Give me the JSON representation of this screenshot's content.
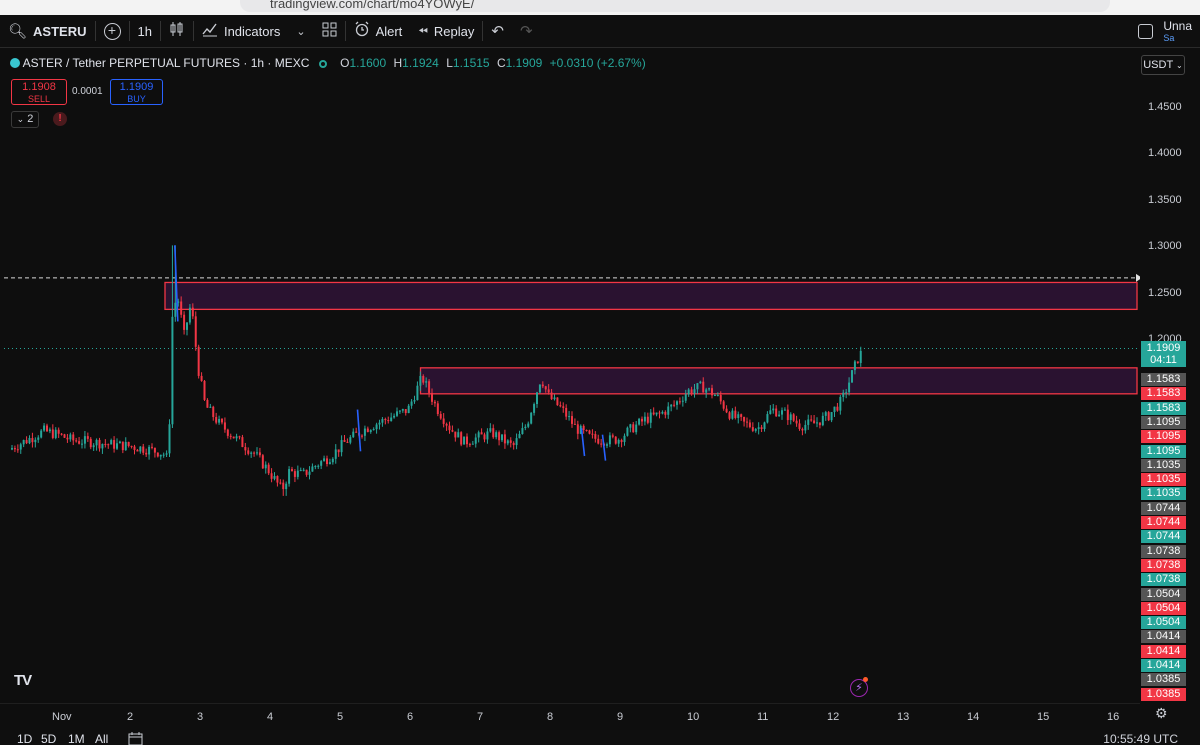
{
  "browser": {
    "url": "tradingview.com/chart/mo4YOWyE/"
  },
  "toolbar": {
    "symbol": "ASTERU",
    "interval": "1h",
    "indicators_label": "Indicators",
    "alert_label": "Alert",
    "replay_label": "Replay",
    "layout_name": "Unna",
    "layout_sub": "Sa"
  },
  "legend": {
    "title": "ASTER / Tether PERPETUAL FUTURES · 1h · MEXC",
    "o_label": "O",
    "o": "1.1600",
    "h_label": "H",
    "h": "1.1924",
    "l_label": "L",
    "l": "1.1515",
    "c_label": "C",
    "c": "1.1909",
    "change": "+0.0310 (+2.67%)"
  },
  "trade": {
    "sell_price": "1.1908",
    "sell_label": "SELL",
    "spread": "0.0001",
    "buy_price": "1.1909",
    "buy_label": "BUY"
  },
  "indicator_count": "2",
  "alert_badge": "!",
  "currency": "USDT",
  "price_ticks": [
    "1.4500",
    "1.4000",
    "1.3500",
    "1.3000",
    "1.2500",
    "1.2000"
  ],
  "last_price": {
    "price": "1.1909",
    "countdown": "04:11",
    "color": "#26a69a"
  },
  "price_tags": [
    {
      "value": "1.1583",
      "color": "#555555"
    },
    {
      "value": "1.1583",
      "color": "#f23645"
    },
    {
      "value": "1.1583",
      "color": "#26a69a"
    },
    {
      "value": "1.1095",
      "color": "#555555"
    },
    {
      "value": "1.1095",
      "color": "#f23645"
    },
    {
      "value": "1.1095",
      "color": "#26a69a"
    },
    {
      "value": "1.1035",
      "color": "#555555"
    },
    {
      "value": "1.1035",
      "color": "#f23645"
    },
    {
      "value": "1.1035",
      "color": "#26a69a"
    },
    {
      "value": "1.0744",
      "color": "#555555"
    },
    {
      "value": "1.0744",
      "color": "#f23645"
    },
    {
      "value": "1.0744",
      "color": "#26a69a"
    },
    {
      "value": "1.0738",
      "color": "#555555"
    },
    {
      "value": "1.0738",
      "color": "#f23645"
    },
    {
      "value": "1.0738",
      "color": "#26a69a"
    },
    {
      "value": "1.0504",
      "color": "#555555"
    },
    {
      "value": "1.0504",
      "color": "#f23645"
    },
    {
      "value": "1.0504",
      "color": "#26a69a"
    },
    {
      "value": "1.0414",
      "color": "#555555"
    },
    {
      "value": "1.0414",
      "color": "#f23645"
    },
    {
      "value": "1.0414",
      "color": "#26a69a"
    },
    {
      "value": "1.0385",
      "color": "#555555"
    },
    {
      "value": "1.0385",
      "color": "#f23645"
    }
  ],
  "time_labels": [
    "Nov",
    "2",
    "3",
    "4",
    "5",
    "6",
    "7",
    "8",
    "9",
    "10",
    "11",
    "12",
    "13",
    "14",
    "15",
    "16"
  ],
  "chart_data": {
    "type": "candlestick",
    "price_range": [
      1.03,
      1.47
    ],
    "x_range_days": [
      0.3,
      16.5
    ],
    "up_color": "#26a69a",
    "down_color": "#f23645",
    "zones": [
      {
        "from_day": 2.5,
        "to_day": 16.4,
        "low": 1.233,
        "high": 1.262,
        "border": "#f23645",
        "fill": "#2a1230"
      },
      {
        "from_day": 6.15,
        "to_day": 16.4,
        "low": 1.142,
        "high": 1.17,
        "border": "#f23645",
        "fill": "#2a1230"
      }
    ],
    "dashed_level": 1.267,
    "dotted_level": 1.1909,
    "path_points": [
      [
        0.3,
        1.082
      ],
      [
        0.5,
        1.09
      ],
      [
        0.8,
        1.102
      ],
      [
        1.0,
        1.098
      ],
      [
        1.2,
        1.092
      ],
      [
        1.5,
        1.09
      ],
      [
        1.8,
        1.087
      ],
      [
        2.0,
        1.086
      ],
      [
        2.3,
        1.082
      ],
      [
        2.5,
        1.078
      ],
      [
        2.58,
        1.07
      ],
      [
        2.62,
        1.22
      ],
      [
        2.7,
        1.25
      ],
      [
        2.8,
        1.205
      ],
      [
        2.9,
        1.24
      ],
      [
        3.0,
        1.17
      ],
      [
        3.1,
        1.13
      ],
      [
        3.3,
        1.11
      ],
      [
        3.6,
        1.09
      ],
      [
        3.8,
        1.078
      ],
      [
        4.0,
        1.06
      ],
      [
        4.2,
        1.038
      ],
      [
        4.3,
        1.058
      ],
      [
        4.5,
        1.055
      ],
      [
        4.7,
        1.066
      ],
      [
        4.9,
        1.075
      ],
      [
        5.1,
        1.09
      ],
      [
        5.4,
        1.105
      ],
      [
        5.7,
        1.115
      ],
      [
        6.0,
        1.125
      ],
      [
        6.2,
        1.16
      ],
      [
        6.4,
        1.128
      ],
      [
        6.6,
        1.105
      ],
      [
        6.8,
        1.09
      ],
      [
        7.0,
        1.095
      ],
      [
        7.2,
        1.1
      ],
      [
        7.5,
        1.085
      ],
      [
        7.7,
        1.11
      ],
      [
        7.9,
        1.16
      ],
      [
        8.0,
        1.14
      ],
      [
        8.2,
        1.125
      ],
      [
        8.4,
        1.105
      ],
      [
        8.6,
        1.095
      ],
      [
        8.8,
        1.092
      ],
      [
        9.0,
        1.093
      ],
      [
        9.2,
        1.105
      ],
      [
        9.4,
        1.115
      ],
      [
        9.6,
        1.12
      ],
      [
        9.8,
        1.13
      ],
      [
        10.0,
        1.145
      ],
      [
        10.2,
        1.15
      ],
      [
        10.4,
        1.14
      ],
      [
        10.6,
        1.12
      ],
      [
        10.8,
        1.11
      ],
      [
        11.0,
        1.105
      ],
      [
        11.2,
        1.125
      ],
      [
        11.4,
        1.12
      ],
      [
        11.6,
        1.108
      ],
      [
        11.8,
        1.11
      ],
      [
        12.0,
        1.118
      ],
      [
        12.2,
        1.135
      ],
      [
        12.35,
        1.165
      ],
      [
        12.45,
        1.185
      ]
    ]
  },
  "bottom": {
    "ranges": [
      "1D",
      "5D",
      "1M",
      "All"
    ],
    "clock": "10:55:49 UTC"
  }
}
